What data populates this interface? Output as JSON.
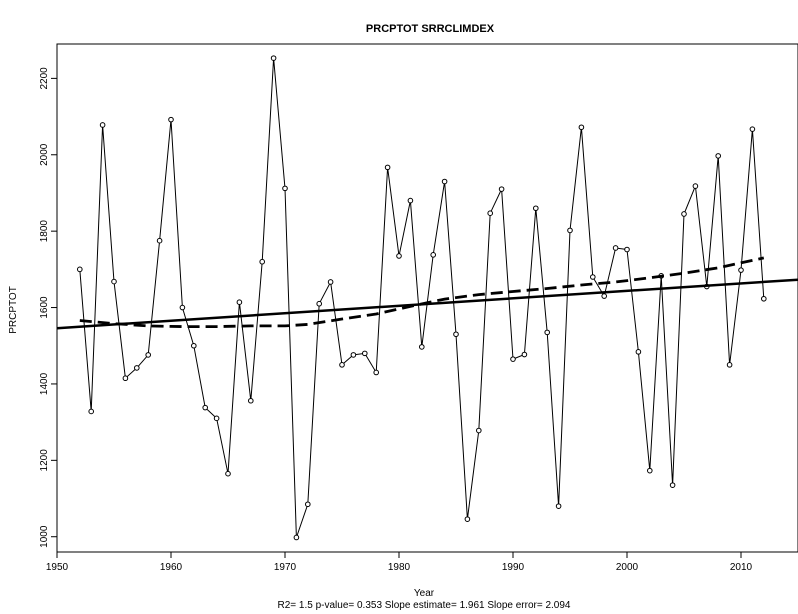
{
  "chart_data": {
    "type": "line",
    "title": "PRCPTOT   SRRCLIMDEX",
    "xlabel": "Year",
    "ylabel": "PRCPTOT",
    "stats_line": "R2= 1.5  p-value= 0.353  Slope estimate= 1.961  Slope error= 2.094",
    "xlim": [
      1950,
      2015
    ],
    "ylim": [
      960,
      2290
    ],
    "x_ticks": [
      1950,
      1960,
      1970,
      1980,
      1990,
      2000,
      2010
    ],
    "y_ticks": [
      1000,
      1200,
      1400,
      1600,
      1800,
      2000,
      2200
    ],
    "x_tick_labels": [
      "1950",
      "1960",
      "1970",
      "1980",
      "1990",
      "2000",
      "2010"
    ],
    "y_tick_labels": [
      "1000",
      "1200",
      "1400",
      "1600",
      "1800",
      "2000",
      "2200"
    ],
    "grid": false,
    "series": [
      {
        "style": "line-with-open-circles",
        "x": [
          1952,
          1953,
          1954,
          1955,
          1956,
          1957,
          1958,
          1959,
          1960,
          1961,
          1962,
          1963,
          1964,
          1965,
          1966,
          1967,
          1968,
          1969,
          1970,
          1971,
          1972,
          1973,
          1974,
          1975,
          1976,
          1977,
          1978,
          1979,
          1980,
          1981,
          1982,
          1983,
          1984,
          1985,
          1986,
          1987,
          1988,
          1989,
          1990,
          1991,
          1992,
          1993,
          1994,
          1995,
          1996,
          1997,
          1998,
          1999,
          2000,
          2001,
          2002,
          2003,
          2004,
          2005,
          2006,
          2007,
          2008,
          2009,
          2010,
          2011,
          2012
        ],
        "y": [
          1700,
          1328,
          2078,
          1668,
          1415,
          1442,
          1476,
          1775,
          2092,
          1600,
          1500,
          1338,
          1310,
          1165,
          1614,
          1356,
          1720,
          2253,
          1912,
          998,
          1085,
          1610,
          1667,
          1450,
          1476,
          1480,
          1430,
          1967,
          1735,
          1880,
          1497,
          1738,
          1930,
          1530,
          1046,
          1278,
          1847,
          1910,
          1465,
          1477,
          1860,
          1535,
          1080,
          1802,
          2072,
          1680,
          1630,
          1756,
          1752,
          1484,
          1173,
          1683,
          1135,
          1845,
          1918,
          1655,
          1997,
          1450,
          1698,
          2067,
          1623
        ]
      },
      {
        "style": "solid-thick",
        "x": [
          1950,
          2015
        ],
        "y": [
          1546,
          1673
        ]
      },
      {
        "style": "dashed-thick",
        "x": [
          1952,
          1955,
          1958,
          1961,
          1964,
          1967,
          1970,
          1972,
          1975,
          1978,
          1981,
          1984,
          1987,
          1990,
          1993,
          1996,
          1999,
          2002,
          2005,
          2008,
          2012
        ],
        "y": [
          1566,
          1558,
          1552,
          1550,
          1550,
          1552,
          1552,
          1556,
          1570,
          1583,
          1603,
          1622,
          1634,
          1642,
          1650,
          1659,
          1667,
          1678,
          1690,
          1704,
          1730
        ]
      }
    ],
    "colors": {
      "series": "#000000",
      "axis": "#000000",
      "background": "#ffffff"
    }
  }
}
